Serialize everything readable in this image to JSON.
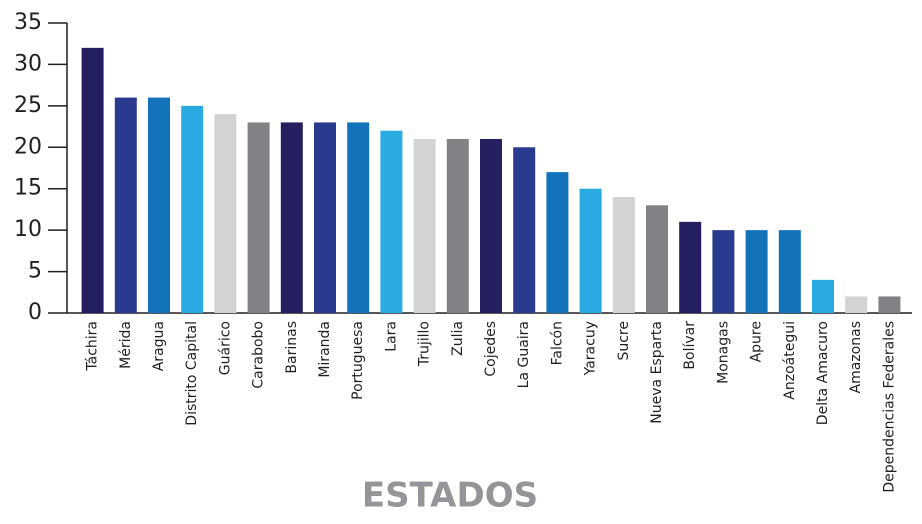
{
  "chart_data": {
    "type": "bar",
    "x_label": "ESTADOS",
    "categories": [
      "Táchira",
      "Mérida",
      "Aragua",
      "Distrito Capital",
      "Guárico",
      "Carabobo",
      "Barinas",
      "Miranda",
      "Portuguesa",
      "Lara",
      "Trujillo",
      "Zulia",
      "Cojedes",
      "La Guaira",
      "Falcón",
      "Yaracuy",
      "Sucre",
      "Nueva Esparta",
      "Bolívar",
      "Monagas",
      "Apure",
      "Anzoátegui",
      "Delta Amacuro",
      "Amazonas",
      "Dependencias Federales"
    ],
    "values": [
      32,
      26,
      26,
      25,
      24,
      23,
      23,
      23,
      23,
      22,
      21,
      21,
      21,
      20,
      17,
      15,
      14,
      13,
      11,
      10,
      10,
      10,
      4,
      2,
      2
    ],
    "colors": [
      "#241f5e",
      "#2a3a8f",
      "#1273bb",
      "#29abe2",
      "#d1d3d4",
      "#808285",
      "#241f5e",
      "#2a3a8f",
      "#1273bb",
      "#29abe2",
      "#d1d3d4",
      "#808285",
      "#241f5e",
      "#2a3a8f",
      "#1273bb",
      "#29abe2",
      "#d1d3d4",
      "#808285",
      "#241f5e",
      "#2a3a8f",
      "#1273bb",
      "#1273bb",
      "#29abe2",
      "#d1d3d4",
      "#808285"
    ],
    "ylim": [
      0,
      35
    ],
    "yticks": [
      0,
      5,
      10,
      15,
      20,
      25,
      30,
      35
    ],
    "grid": false
  }
}
